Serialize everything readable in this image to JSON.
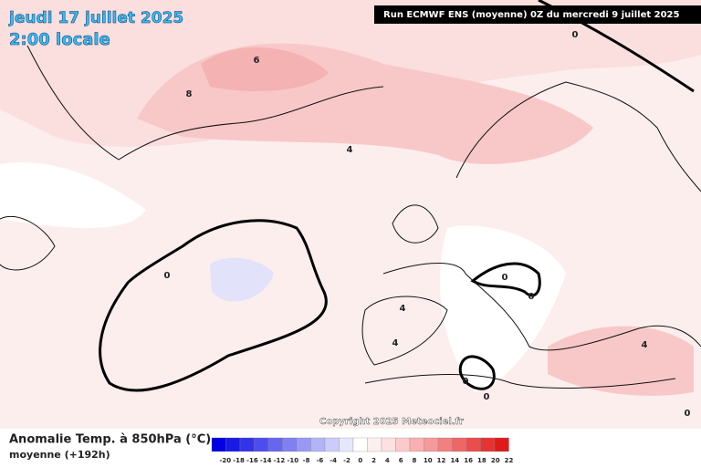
{
  "header": {
    "date": "jeudi 17 juillet 2025",
    "time": "2:00 locale",
    "run": "Run ECMWF ENS (moyenne) 0Z du mercredi 9 juillet 2025"
  },
  "legend": {
    "title": "Anomalie Temp. à 850hPa (°C)",
    "subtitle": "moyenne  (+192h)",
    "ticks": [
      -20,
      -18,
      -16,
      -14,
      -12,
      -10,
      -8,
      -6,
      -4,
      -2,
      0,
      2,
      4,
      6,
      8,
      10,
      12,
      14,
      16,
      18,
      20,
      22
    ],
    "colors": [
      "#0000e0",
      "#1a1ae6",
      "#3333ea",
      "#4d4dee",
      "#6666f0",
      "#8080f2",
      "#9999f5",
      "#b3b3f8",
      "#ccccfa",
      "#e6e6fd",
      "#ffffff",
      "#fff0f0",
      "#fde0e0",
      "#fbcaca",
      "#f8b0b0",
      "#f59a9a",
      "#f28080",
      "#ee6666",
      "#ea4d4d",
      "#e63333",
      "#e01a1a"
    ]
  },
  "copyright": "Copyright 2025 Meteociel.fr",
  "contour_labels": [
    "0",
    "8",
    "6",
    "4",
    "0",
    "4",
    "4",
    "0",
    "0",
    "0",
    "0",
    "4",
    "0"
  ]
}
